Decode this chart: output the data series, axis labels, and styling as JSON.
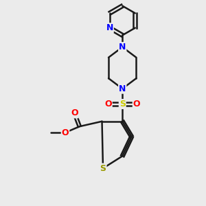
{
  "bg_color": "#ebebeb",
  "bond_color": "#1a1a1a",
  "N_color": "#0000ff",
  "O_color": "#ff0000",
  "S_sulfonyl_color": "#cccc00",
  "S_thiophene_color": "#999900",
  "figsize": [
    3.0,
    3.0
  ],
  "dpi": 100,
  "xlim": [
    0,
    10
  ],
  "ylim": [
    0,
    10
  ]
}
